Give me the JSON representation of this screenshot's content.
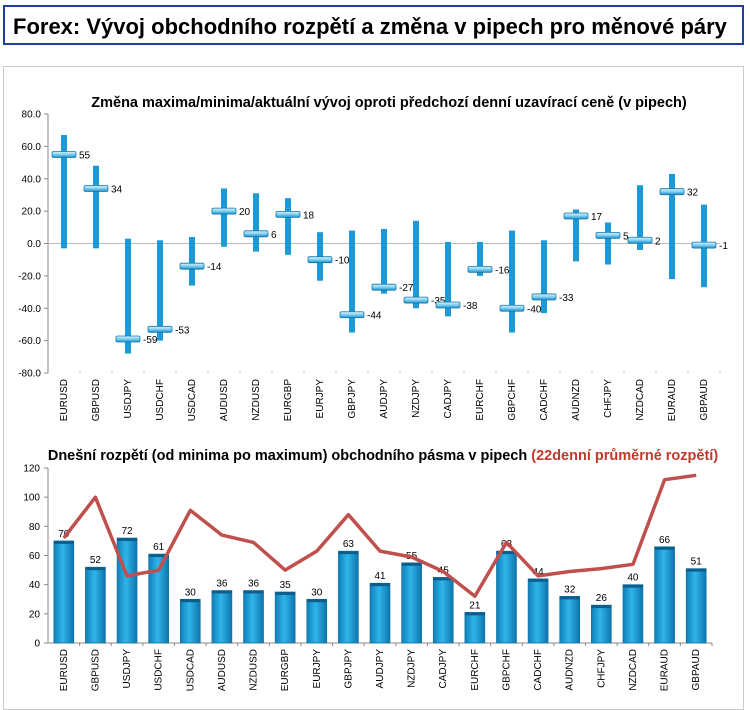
{
  "header": {
    "title": "Forex: Vývoj obchodního rozpětí a změna v pipech pro měnové páry"
  },
  "colors": {
    "accent": "#1b9ad6",
    "line": "#c0504d",
    "axis": "#888888",
    "title_border": "#1f3f9a"
  },
  "chart_data": [
    {
      "type": "bar",
      "subtype": "range-with-marker",
      "title": "Změna maxima/minima/aktuální vývoj oproti předchozí denní uzavírací ceně (v pipech)",
      "categories": [
        "EURUSD",
        "GBPUSD",
        "USDJPY",
        "USDCHF",
        "USDCAD",
        "AUDUSD",
        "NZDUSD",
        "EURGBP",
        "EURJPY",
        "GBPJPY",
        "AUDJPY",
        "NZDJPY",
        "CADJPY",
        "EURCHF",
        "GBPCHF",
        "CADCHF",
        "AUDNZD",
        "CHFJPY",
        "NZDCAD",
        "EURAUD",
        "GBPAUD"
      ],
      "current": [
        55,
        34,
        -59,
        -53,
        -14,
        20,
        6,
        18,
        -10,
        -44,
        -27,
        -35,
        -38,
        -16,
        -40,
        -33,
        17,
        5,
        2,
        32,
        -1
      ],
      "current_labels": [
        "55",
        "34",
        "-59",
        "-53",
        "-14",
        "20",
        "6",
        "18",
        "-10",
        "-44",
        "-27",
        "-35",
        "-38",
        "-16",
        "-40",
        "-33",
        "17",
        "5",
        "2",
        "32",
        "-1"
      ],
      "high": [
        67,
        48,
        3,
        2,
        4,
        34,
        31,
        28,
        7,
        8,
        9,
        14,
        1,
        1,
        8,
        2,
        21,
        13,
        36,
        43,
        24
      ],
      "low": [
        -3,
        -3,
        -68,
        -60,
        -26,
        -2,
        -5,
        -7,
        -23,
        -55,
        -31,
        -40,
        -45,
        -20,
        -55,
        -43,
        -11,
        -13,
        -4,
        -22,
        -27
      ],
      "yticks": [
        "80.0",
        "60.0",
        "40.0",
        "20.0",
        "0.0",
        "-20.0",
        "-40.0",
        "-60.0",
        "-80.0"
      ],
      "ylim": [
        -80,
        80
      ],
      "grid": false
    },
    {
      "type": "bar",
      "title": "Dnešní rozpětí (od minima po maximum) obchodního pásma v pipech",
      "title_highlight": "(22denní průměrné rozpětí)",
      "categories": [
        "EURUSD",
        "GBPUSD",
        "USDJPY",
        "USDCHF",
        "USDCAD",
        "AUDUSD",
        "NZDUSD",
        "EURGBP",
        "EURJPY",
        "GBPJPY",
        "AUDJPY",
        "NZDJPY",
        "CADJPY",
        "EURCHF",
        "GBPCHF",
        "CADCHF",
        "AUDNZD",
        "CHFJPY",
        "NZDCAD",
        "EURAUD",
        "GBPAUD"
      ],
      "series": [
        {
          "values": [
            70,
            52,
            72,
            61,
            30,
            36,
            36,
            35,
            30,
            63,
            41,
            55,
            45,
            21,
            63,
            44,
            32,
            26,
            40,
            66,
            51
          ],
          "labels": [
            "70",
            "52",
            "72",
            "61",
            "30",
            "36",
            "36",
            "35",
            "30",
            "63",
            "41",
            "55",
            "45",
            "21",
            "63",
            "44",
            "32",
            "26",
            "40",
            "66",
            "51"
          ]
        },
        {
          "type": "line",
          "values": [
            72,
            100,
            46,
            50,
            91,
            74,
            69,
            50,
            63,
            88,
            63,
            59,
            49,
            32,
            69,
            46,
            49,
            51,
            54,
            112,
            115
          ]
        }
      ],
      "yticks": [
        "120",
        "100",
        "80",
        "60",
        "40",
        "20",
        "0"
      ],
      "ylim": [
        0,
        120
      ],
      "grid": false
    }
  ]
}
